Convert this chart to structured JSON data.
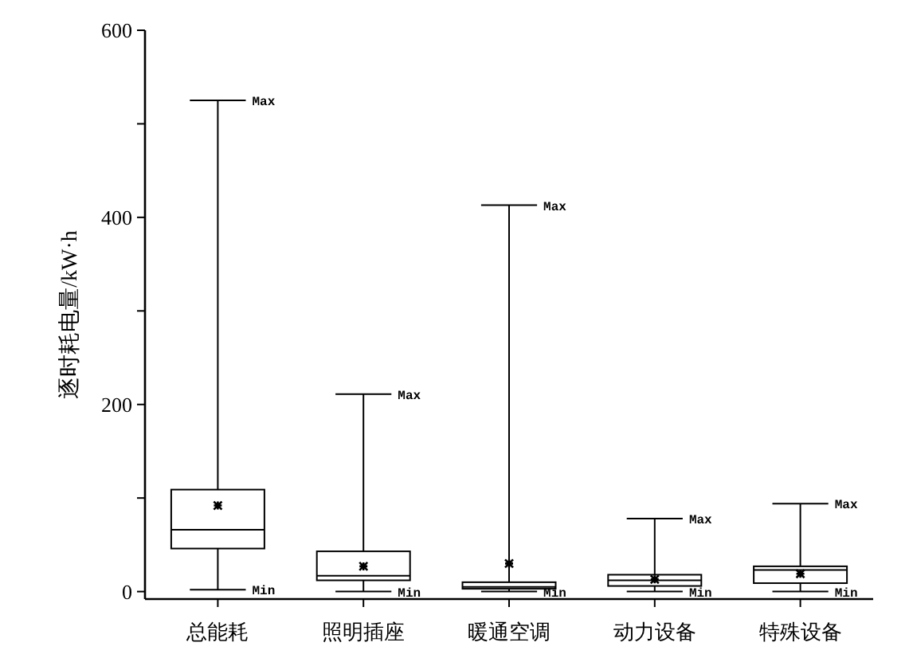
{
  "chart_data": {
    "type": "box",
    "ylabel": "逐时耗电量/kW·h",
    "categories": [
      "总能耗",
      "照明插座",
      "暖通空调",
      "动力设备",
      "特殊设备"
    ],
    "boxes": [
      {
        "low": 2,
        "q1": 46,
        "median": 66,
        "q3": 109,
        "high": 525,
        "mean": 92
      },
      {
        "low": 0,
        "q1": 12,
        "median": 17,
        "q3": 43,
        "high": 211,
        "mean": 27
      },
      {
        "low": 0,
        "q1": 3,
        "median": 5,
        "q3": 10,
        "high": 413,
        "mean": 30
      },
      {
        "low": 0,
        "q1": 6,
        "median": 12,
        "q3": 18,
        "high": 78,
        "mean": 13
      },
      {
        "low": 0,
        "q1": 9,
        "median": 23,
        "q3": 27,
        "high": 94,
        "mean": 19
      }
    ],
    "ylim": [
      -8,
      600
    ],
    "yticks": [
      0,
      {
        "value": 100,
        "label": null
      },
      200,
      {
        "value": 300,
        "label": null
      },
      400,
      {
        "value": 500,
        "label": null
      },
      600
    ],
    "grid": false,
    "annotations": [
      {
        "text": "Max",
        "x": "总能耗",
        "y": 525
      },
      {
        "text": "Min",
        "x": "总能耗",
        "y": 2
      },
      {
        "text": "Max",
        "x": "照明插座",
        "y": 211
      },
      {
        "text": "Min",
        "x": "照明插座",
        "y": 0
      },
      {
        "text": "Max",
        "x": "暖通空调",
        "y": 413
      },
      {
        "text": "Min",
        "x": "暖通空调",
        "y": 0
      },
      {
        "text": "Max",
        "x": "动力设备",
        "y": 78
      },
      {
        "text": "Min",
        "x": "动力设备",
        "y": 0
      },
      {
        "text": "Max",
        "x": "特殊设备",
        "y": 94
      },
      {
        "text": "Min",
        "x": "特殊设备",
        "y": 0
      }
    ]
  }
}
